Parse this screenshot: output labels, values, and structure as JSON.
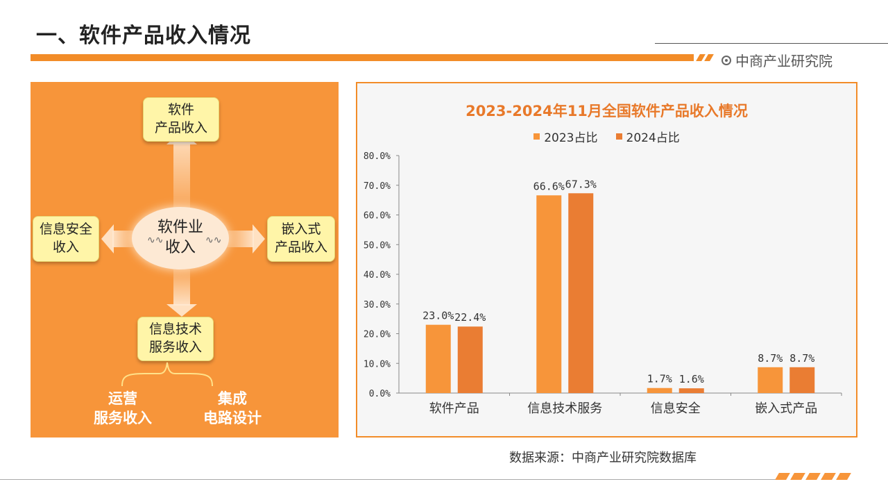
{
  "page": {
    "title": "一、软件产品收入情况",
    "brand": "中商产业研究院",
    "source": "数据来源：中商产业研究院数据库"
  },
  "diagram": {
    "center": "软件业\n收入",
    "top": "软件\n产品收入",
    "left": "信息安全\n收入",
    "right": "嵌入式\n产品收入",
    "bottom": "信息技术\n服务收入",
    "sub_left": "运营\n服务收入",
    "sub_right": "集成\n电路设计"
  },
  "colors": {
    "accent": "#f28c28",
    "series_2023": "#f7953a",
    "series_2024": "#ea7d33",
    "title": "#e8792a",
    "panel": "#f7953a"
  },
  "chart_data": {
    "type": "bar",
    "title": "2023-2024年11月全国软件产品收入情况",
    "categories": [
      "软件产品",
      "信息技术服务",
      "信息安全",
      "嵌入式产品"
    ],
    "series": [
      {
        "name": "2023占比",
        "values": [
          23.0,
          66.6,
          1.7,
          8.7
        ],
        "labels": [
          "23.0%",
          "66.6%",
          "1.7%",
          "8.7%"
        ]
      },
      {
        "name": "2024占比",
        "values": [
          22.4,
          67.3,
          1.6,
          8.7
        ],
        "labels": [
          "22.4%",
          "67.3%",
          "1.6%",
          "8.7%"
        ]
      }
    ],
    "yticks": [
      "0.0%",
      "10.0%",
      "20.0%",
      "30.0%",
      "40.0%",
      "50.0%",
      "60.0%",
      "70.0%",
      "80.0%"
    ],
    "ylim": [
      0,
      80
    ],
    "legend_position": "top",
    "grid": false
  }
}
